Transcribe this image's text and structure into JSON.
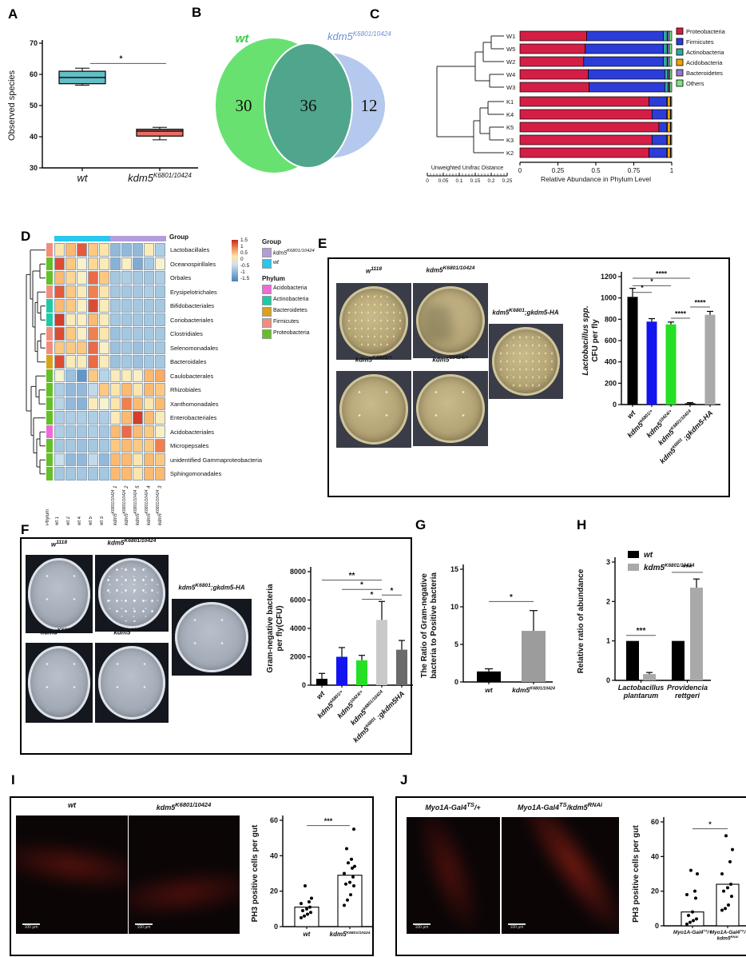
{
  "letters": {
    "A": "A",
    "B": "B",
    "C": "C",
    "D": "D",
    "E": "E",
    "F": "F",
    "G": "G",
    "H": "H",
    "I": "I",
    "J": "J"
  },
  "panelE": {
    "dish_labels": [
      "w^{1118}",
      "kdm5^{K6801/10424}",
      "kdm5^{K6801};gkdm5-HA",
      "kdm5^{K6801/+}",
      "kdm5^{10424/+}"
    ]
  },
  "panelF": {
    "dish_labels": [
      "w^{1118}",
      "kdm5^{K6801/10424}",
      "kdm5^{K6801};gkdm5-HA",
      "kdm5^{K6801/+}",
      "kdm5^{10424/+}"
    ]
  },
  "panelI": {
    "image_labels": [
      "wt",
      "kdm5^{K6801/10424}"
    ],
    "scale_label": "100 μm"
  },
  "panelJ": {
    "image_labels": [
      "Myo1A-Gal4^{TS}/+",
      "Myo1A-Gal4^{TS}/kdm5^{RNAi}"
    ],
    "scale_label": "100 μm"
  },
  "chart_data": [
    {
      "panel": "A",
      "type": "box",
      "ylabel": "Observed species",
      "ylim": [
        30,
        70
      ],
      "yticks": [
        "30",
        "40",
        "50",
        "60",
        "70"
      ],
      "categories": [
        "wt",
        "kdm5^{K6801/10424}"
      ],
      "boxes": [
        {
          "min": 56.5,
          "q1": 57,
          "median": 59,
          "q3": 61,
          "max": 62,
          "color": "#63bec6"
        },
        {
          "min": 39,
          "q1": 40.2,
          "median": 41.8,
          "q3": 42.4,
          "max": 43,
          "color": "#ea6d66"
        }
      ],
      "sig": [
        {
          "a": 0,
          "b": 1,
          "label": "*",
          "y": 63.5
        }
      ]
    },
    {
      "panel": "B",
      "type": "venn",
      "sets": [
        {
          "label": "wt",
          "value": "30",
          "color": "#68e170",
          "label_color": "#3ecb4a"
        },
        {
          "label": "kdm5^{K6801/10424}",
          "value": "12",
          "color": "#b5c8ee",
          "label_color": "#6f8fd8"
        }
      ],
      "overlap": {
        "value": "36",
        "color": "#4fa68d"
      }
    },
    {
      "panel": "C",
      "type": "stacked-bar-horizontal",
      "xlabel": "Relative Abundance in Phylum Level",
      "xticks": [
        "0",
        "0.25",
        "0.5",
        "0.75",
        "1"
      ],
      "scale_label": "Unweighted Unifrac Distance",
      "scale_ticks": [
        "0",
        "0.05",
        "0.1",
        "0.15",
        "0.2",
        "0.25"
      ],
      "categories": [
        "W1",
        "W5",
        "W2",
        "W4",
        "W3",
        "K1",
        "K4",
        "K5",
        "K3",
        "K2"
      ],
      "legend": [
        "Proteobacteria",
        "Firmicutes",
        "Actinobacteria",
        "Acidobacteria",
        "Bacteroidetes",
        "Others"
      ],
      "colors": [
        "#d41e45",
        "#2b3cd8",
        "#2fa99e",
        "#f2a202",
        "#9478cf",
        "#7de583"
      ],
      "values": [
        [
          0.44,
          0.505,
          0.025,
          0.002,
          0.012,
          0.016
        ],
        [
          0.43,
          0.515,
          0.025,
          0.002,
          0.012,
          0.016
        ],
        [
          0.42,
          0.525,
          0.025,
          0.002,
          0.012,
          0.016
        ],
        [
          0.45,
          0.505,
          0.02,
          0.002,
          0.01,
          0.013
        ],
        [
          0.455,
          0.5,
          0.022,
          0.002,
          0.009,
          0.012
        ],
        [
          0.85,
          0.118,
          0.003,
          0.02,
          0.003,
          0.006
        ],
        [
          0.87,
          0.098,
          0.003,
          0.02,
          0.003,
          0.006
        ],
        [
          0.915,
          0.053,
          0.003,
          0.02,
          0.003,
          0.006
        ],
        [
          0.87,
          0.098,
          0.003,
          0.02,
          0.003,
          0.006
        ],
        [
          0.85,
          0.118,
          0.003,
          0.02,
          0.003,
          0.006
        ]
      ]
    },
    {
      "panel": "D",
      "type": "heatmap",
      "rows": [
        "Lactobacillales",
        "Oceanospirillales",
        "Orbales",
        "Erysipelotrichales",
        "Bifidobacteriales",
        "Coriobacteriales",
        "Clostridiales",
        "Selenomonadales",
        "Bacteroidales",
        "Caulobacterales",
        "Rhizobiales",
        "Xanthomonadales",
        "Enterobacteriales",
        "Acidobacteriales",
        "Micropepsales",
        "unidentified Gammaproteobacteria",
        "Sphingomonadales"
      ],
      "row_phylum": [
        "Firmicutes",
        "Proteobacteria",
        "Proteobacteria",
        "Firmicutes",
        "Actinobacteria",
        "Actinobacteria",
        "Firmicutes",
        "Firmicutes",
        "Bacteroidetes",
        "Proteobacteria",
        "Proteobacteria",
        "Proteobacteria",
        "Proteobacteria",
        "Acidobacteria",
        "Proteobacteria",
        "Proteobacteria",
        "Proteobacteria"
      ],
      "col_labels": [
        "Phylum",
        "wt 1",
        "wt 2",
        "wt 4",
        "wt 5",
        "wt 3",
        "kdm5^{K6801/10424} 1",
        "kdm5^{K6801/10424} 2",
        "kdm5^{K6801/10424} 5",
        "kdm5^{K6801/10424} 4",
        "kdm5^{K6801/10424} 3"
      ],
      "values": [
        [
          0.4,
          0.8,
          1.3,
          0.7,
          0.4,
          -0.8,
          -0.8,
          -0.8,
          0.3,
          -0.5
        ],
        [
          1.4,
          0.7,
          0.1,
          0.6,
          0.3,
          -0.9,
          0.2,
          -1.0,
          -0.6,
          0.1
        ],
        [
          0.8,
          0.6,
          0.2,
          1.2,
          0.7,
          -0.6,
          -0.5,
          -0.6,
          -0.6,
          -0.5
        ],
        [
          1.3,
          0.7,
          0.3,
          1.1,
          0.4,
          -0.6,
          -0.6,
          -0.6,
          -0.5,
          -0.6
        ],
        [
          0.8,
          0.7,
          0.2,
          1.4,
          0.3,
          -0.6,
          -0.6,
          -0.6,
          -0.6,
          -0.6
        ],
        [
          1.5,
          0.3,
          0.2,
          0.8,
          0.3,
          -0.6,
          -0.6,
          -0.6,
          -0.6,
          -0.6
        ],
        [
          1.4,
          0.7,
          0.2,
          1.1,
          0.4,
          -0.7,
          -0.6,
          -0.6,
          -0.6,
          -0.6
        ],
        [
          0.7,
          0.7,
          0.7,
          1.2,
          0.2,
          -0.7,
          -0.6,
          -0.7,
          -0.6,
          -0.6
        ],
        [
          1.4,
          0.3,
          0.3,
          1.2,
          0.3,
          -0.7,
          -0.6,
          -0.7,
          -0.6,
          -0.6
        ],
        [
          0.1,
          -0.7,
          -1.3,
          0.7,
          -0.4,
          0.3,
          0.3,
          0.2,
          0.8,
          0.9
        ],
        [
          -0.5,
          -0.8,
          -0.8,
          -0.3,
          0.7,
          0.4,
          0.8,
          0.4,
          0.8,
          0.7
        ],
        [
          -0.4,
          -0.8,
          -0.9,
          0.3,
          0.1,
          0.4,
          1.1,
          0.8,
          0.4,
          0.8
        ],
        [
          -0.5,
          -0.5,
          -0.5,
          -0.5,
          -0.5,
          0.3,
          0.8,
          1.5,
          0.8,
          0.3
        ],
        [
          -0.5,
          -0.6,
          -0.6,
          -0.5,
          -0.6,
          0.8,
          1.2,
          0.8,
          0.7,
          0.2
        ],
        [
          -0.6,
          -0.6,
          -0.7,
          -0.6,
          -0.6,
          0.7,
          0.8,
          0.7,
          0.7,
          1.1
        ],
        [
          -0.2,
          -0.8,
          -0.8,
          -0.3,
          -0.8,
          0.8,
          0.8,
          0.4,
          0.8,
          0.7
        ],
        [
          -0.6,
          -0.6,
          -0.6,
          -0.6,
          -0.6,
          0.8,
          0.8,
          0.4,
          0.8,
          0.8
        ]
      ],
      "scale_ticks": [
        "1.5",
        "1",
        "0.5",
        "0",
        "-0.5",
        "-1",
        "-1.5"
      ],
      "group_legend": {
        "title": "Group",
        "items": [
          {
            "label": "kdm5^{K6801/10424}",
            "color": "#b39ddb"
          },
          {
            "label": "wt",
            "color": "#29c7ee"
          }
        ]
      },
      "phylum_legend": {
        "title": "Phylum",
        "items": [
          {
            "label": "Acidobacteria",
            "color": "#ef6ad8"
          },
          {
            "label": "Actinobacteria",
            "color": "#1ec9a7"
          },
          {
            "label": "Bacteroidetes",
            "color": "#d9a21b"
          },
          {
            "label": "Firmicutes",
            "color": "#f28d7e"
          },
          {
            "label": "Proteobacteria",
            "color": "#64c028"
          }
        ]
      },
      "header_label": "Group"
    },
    {
      "panel": "E",
      "type": "bar",
      "ylabel_lines": [
        "Lactobacillus spp.",
        "CFU per fly"
      ],
      "ylim": [
        0,
        1200
      ],
      "yticks": [
        "0",
        "200",
        "400",
        "600",
        "800",
        "1000",
        "1200"
      ],
      "categories": [
        "wt",
        "kdm5^{k6801/+}",
        "kdm5^{10424/+}",
        "kdm5^{K6801/10424}",
        "kdm5^{k6801} ;gkdm5-HA"
      ],
      "values": [
        1010,
        778,
        752,
        12,
        842
      ],
      "errors": [
        80,
        28,
        22,
        6,
        32
      ],
      "colors": [
        "#000000",
        "#1414f0",
        "#26e026",
        "#000000",
        "#a9a9a9"
      ],
      "sig": [
        {
          "a": 0,
          "b": 3,
          "label": "****",
          "y": 1185
        },
        {
          "a": 0,
          "b": 2,
          "label": "*",
          "y": 1115
        },
        {
          "a": 0,
          "b": 1,
          "label": "*",
          "y": 1052
        },
        {
          "a": 2,
          "b": 3,
          "label": "****",
          "y": 810
        },
        {
          "a": 3,
          "b": 4,
          "label": "****",
          "y": 915
        }
      ]
    },
    {
      "panel": "F",
      "type": "bar",
      "ylabel_lines": [
        "Gram-negative bacteria",
        "per fly(CFU)"
      ],
      "ylim": [
        0,
        8000
      ],
      "yticks": [
        "0",
        "2000",
        "4000",
        "6000",
        "8000"
      ],
      "categories": [
        "wt",
        "kdm5^{k6801/+}",
        "kdm5^{10424/+}",
        "kdm5^{k6801/10424}",
        "kdm5^{k6801} ;gkdm5HA"
      ],
      "values": [
        450,
        2000,
        1750,
        4600,
        2500
      ],
      "errors": [
        380,
        650,
        350,
        1300,
        650
      ],
      "colors": [
        "#000000",
        "#1414f0",
        "#26e026",
        "#c9c9c9",
        "#6b6b6b"
      ],
      "sig": [
        {
          "a": 0,
          "b": 3,
          "label": "**",
          "y": 7400
        },
        {
          "a": 1,
          "b": 3,
          "label": "*",
          "y": 6750
        },
        {
          "a": 2,
          "b": 3,
          "label": "*",
          "y": 6050
        },
        {
          "a": 3,
          "b": 4,
          "label": "*",
          "y": 6350
        }
      ]
    },
    {
      "panel": "G",
      "type": "bar",
      "ylabel_lines": [
        "The Ratio of Gram-negative",
        "bacteria to Positive bacteria"
      ],
      "ylim": [
        0,
        15
      ],
      "yticks": [
        "0",
        "5",
        "10",
        "15"
      ],
      "categories": [
        "wt",
        "kdm5^{K6801/10424}"
      ],
      "values": [
        1.4,
        6.8
      ],
      "errors": [
        0.35,
        2.7
      ],
      "colors": [
        "#000000",
        "#9c9c9c"
      ],
      "sig": [
        {
          "a": 0,
          "b": 1,
          "label": "*",
          "y": 10.7
        }
      ]
    },
    {
      "panel": "H",
      "type": "grouped-bar",
      "ylabel_lines": [
        "Relative ratio of abundance"
      ],
      "ylim": [
        0,
        3
      ],
      "yticks": [
        "0",
        "1",
        "2",
        "3"
      ],
      "categories": [
        "Lactobacillus\nplantarum",
        "Providencia\nrettgeri"
      ],
      "series": [
        {
          "name": "wt",
          "color": "#000000",
          "values": [
            1.0,
            1.0
          ],
          "errors": [
            0,
            0
          ]
        },
        {
          "name": "kdm5^{K6801/10424}",
          "color": "#a9a9a9",
          "values": [
            0.16,
            2.35
          ],
          "errors": [
            0.04,
            0.22
          ]
        }
      ],
      "sig": [
        {
          "group": 0,
          "label": "***",
          "y": 1.14
        },
        {
          "group": 1,
          "label": "***",
          "y": 2.74
        }
      ]
    },
    {
      "panel": "I",
      "type": "dot-bar",
      "ylabel_lines": [
        "PH3 positive cells per gut"
      ],
      "ylim": [
        0,
        60
      ],
      "yticks": [
        "0",
        "20",
        "40",
        "60"
      ],
      "categories": [
        "wt",
        "kdm5^{K6801/10424}"
      ],
      "bar_means": [
        11,
        29
      ],
      "points": [
        [
          5,
          6,
          7,
          8,
          9,
          10,
          11,
          13,
          14,
          16,
          23
        ],
        [
          12,
          15,
          18,
          23,
          24,
          25,
          28,
          30,
          33,
          34,
          36,
          38,
          44,
          55
        ]
      ],
      "sig": [
        {
          "a": 0,
          "b": 1,
          "label": "***",
          "y": 57
        }
      ]
    },
    {
      "panel": "J",
      "type": "dot-bar",
      "ylabel_lines": [
        "PH3 positive cells per gut"
      ],
      "ylim": [
        0,
        60
      ],
      "yticks": [
        "0",
        "20",
        "40",
        "60"
      ],
      "categories": [
        "Myo1A-Gal4^{TS}/+",
        "Myo1A-Gal4^{TS}/\nkdm5^{RNAi}"
      ],
      "bar_means": [
        8,
        24
      ],
      "points": [
        [
          1,
          2,
          3,
          4,
          6,
          8,
          16,
          18,
          20,
          30,
          32
        ],
        [
          9,
          10,
          12,
          17,
          20,
          22,
          24,
          30,
          37,
          44,
          52
        ]
      ],
      "sig": [
        {
          "a": 0,
          "b": 1,
          "label": "*",
          "y": 56
        }
      ]
    }
  ]
}
